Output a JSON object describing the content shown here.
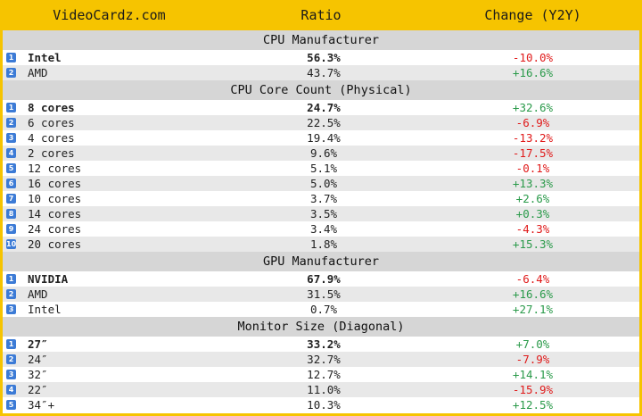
{
  "header": {
    "brand": "VideoCardz.com",
    "ratio": "Ratio",
    "change": "Change (Y2Y)"
  },
  "sections": [
    {
      "title": "CPU Manufacturer",
      "rows": [
        {
          "n": "1",
          "label": "Intel",
          "ratio": "56.3%",
          "change": "-10.0%"
        },
        {
          "n": "2",
          "label": "AMD",
          "ratio": "43.7%",
          "change": "+16.6%"
        }
      ]
    },
    {
      "title": "CPU Core Count (Physical)",
      "rows": [
        {
          "n": "1",
          "label": "8 cores",
          "ratio": "24.7%",
          "change": "+32.6%"
        },
        {
          "n": "2",
          "label": "6 cores",
          "ratio": "22.5%",
          "change": "-6.9%"
        },
        {
          "n": "3",
          "label": "4 cores",
          "ratio": "19.4%",
          "change": "-13.2%"
        },
        {
          "n": "4",
          "label": "2 cores",
          "ratio": "9.6%",
          "change": "-17.5%"
        },
        {
          "n": "5",
          "label": "12 cores",
          "ratio": "5.1%",
          "change": "-0.1%"
        },
        {
          "n": "6",
          "label": "16 cores",
          "ratio": "5.0%",
          "change": "+13.3%"
        },
        {
          "n": "7",
          "label": "10 cores",
          "ratio": "3.7%",
          "change": "+2.6%"
        },
        {
          "n": "8",
          "label": "14 cores",
          "ratio": "3.5%",
          "change": "+0.3%"
        },
        {
          "n": "9",
          "label": "24 cores",
          "ratio": "3.4%",
          "change": "-4.3%"
        },
        {
          "n": "10",
          "label": "20 cores",
          "ratio": "1.8%",
          "change": "+15.3%"
        }
      ]
    },
    {
      "title": "GPU Manufacturer",
      "rows": [
        {
          "n": "1",
          "label": "NVIDIA",
          "ratio": "67.9%",
          "change": "-6.4%"
        },
        {
          "n": "2",
          "label": "AMD",
          "ratio": "31.5%",
          "change": "+16.6%"
        },
        {
          "n": "3",
          "label": "Intel",
          "ratio": "0.7%",
          "change": "+27.1%"
        }
      ]
    },
    {
      "title": "Monitor Size (Diagonal)",
      "rows": [
        {
          "n": "1",
          "label": "27″",
          "ratio": "33.2%",
          "change": "+7.0%"
        },
        {
          "n": "2",
          "label": "24″",
          "ratio": "32.7%",
          "change": "-7.9%"
        },
        {
          "n": "3",
          "label": "32″",
          "ratio": "12.7%",
          "change": "+14.1%"
        },
        {
          "n": "4",
          "label": "22″",
          "ratio": "11.0%",
          "change": "-15.9%"
        },
        {
          "n": "5",
          "label": "34″+",
          "ratio": "10.3%",
          "change": "+12.5%"
        }
      ]
    }
  ],
  "colors": {
    "background": "#f6c400",
    "section_bg": "#d6d6d6",
    "badge": "#3c7bd6",
    "negative": "#e01a1a",
    "positive": "#2a9a4a"
  }
}
